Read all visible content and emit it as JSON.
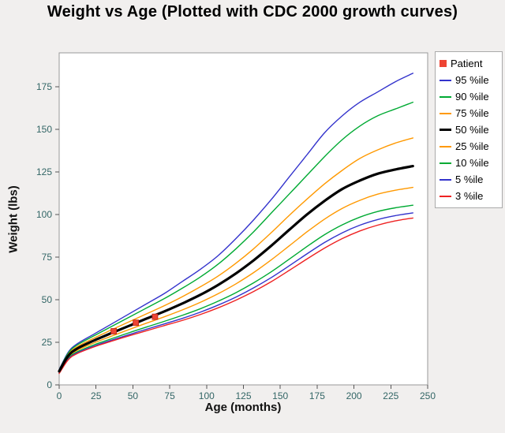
{
  "chart_data": {
    "type": "line",
    "title": "Weight vs Age (Plotted with CDC 2000 growth curves)",
    "xlabel": "Age (months)",
    "ylabel": "Weight (lbs)",
    "xlim": [
      0,
      250
    ],
    "ylim": [
      0,
      195
    ],
    "x_ticks": [
      0,
      25,
      50,
      75,
      100,
      125,
      150,
      175,
      200,
      225,
      250
    ],
    "y_ticks": [
      0,
      25,
      50,
      75,
      100,
      125,
      150,
      175
    ],
    "grid": false,
    "legend_position": "top-right",
    "x": [
      0,
      6,
      12,
      24,
      36,
      48,
      60,
      72,
      84,
      96,
      108,
      120,
      132,
      144,
      156,
      168,
      180,
      192,
      204,
      216,
      228,
      240
    ],
    "series": [
      {
        "name": "95 %ile",
        "color": "#3333cc",
        "line_width": 1.4,
        "values": [
          9,
          19,
          24,
          30,
          36,
          42,
          48,
          54,
          61,
          68,
          76,
          86,
          97,
          109,
          122,
          135,
          148,
          158,
          166,
          172,
          178,
          183
        ]
      },
      {
        "name": "90 %ile",
        "color": "#00aa33",
        "line_width": 1.4,
        "values": [
          8.8,
          18.5,
          23.3,
          29,
          34.5,
          40,
          45.5,
          51,
          57,
          63.5,
          71,
          80,
          90,
          101,
          112,
          123,
          134,
          144,
          152,
          158,
          162,
          166
        ]
      },
      {
        "name": "75 %ile",
        "color": "#ff9900",
        "line_width": 1.4,
        "values": [
          8.4,
          17.7,
          22.3,
          27.6,
          32.5,
          37.3,
          42,
          46.8,
          52,
          57.7,
          64,
          71.5,
          80,
          89.5,
          99.5,
          109,
          118,
          126,
          133,
          138,
          142,
          145
        ]
      },
      {
        "name": "50 %ile",
        "color": "#000000",
        "line_width": 3.2,
        "values": [
          8,
          16.9,
          21.2,
          26.2,
          30.6,
          34.9,
          39.2,
          43.4,
          48,
          53,
          58.8,
          65.5,
          73.2,
          81.8,
          91,
          100,
          108,
          115,
          120,
          124,
          126.5,
          128.5
        ]
      },
      {
        "name": "25 %ile",
        "color": "#ff9900",
        "line_width": 1.4,
        "values": [
          7.6,
          16.1,
          20.2,
          24.8,
          28.8,
          32.7,
          36.5,
          40.2,
          44.2,
          48.6,
          53.6,
          59.4,
          66,
          73.5,
          81.6,
          89.8,
          97.3,
          103.6,
          108.4,
          112,
          114.3,
          116
        ]
      },
      {
        "name": "10 %ile",
        "color": "#00aa33",
        "line_width": 1.4,
        "values": [
          7.2,
          15.4,
          19.3,
          23.6,
          27.3,
          30.8,
          34.2,
          37.5,
          41,
          44.8,
          49.2,
          54.2,
          60,
          66.5,
          73.8,
          81.2,
          88.2,
          94,
          98.5,
          101.8,
          104,
          105.5
        ]
      },
      {
        "name": "5 %ile",
        "color": "#3333cc",
        "line_width": 1.4,
        "values": [
          6.9,
          14.9,
          18.7,
          22.9,
          26.4,
          29.7,
          32.9,
          36,
          39.2,
          42.8,
          46.9,
          51.6,
          57,
          63.1,
          69.9,
          76.9,
          83.6,
          89.3,
          93.8,
          97.1,
          99.4,
          101
        ]
      },
      {
        "name": "3 %ile",
        "color": "#ee2222",
        "line_width": 1.4,
        "values": [
          6.7,
          14.6,
          18.3,
          22.4,
          25.8,
          29,
          32,
          35,
          38,
          41.4,
          45.3,
          49.8,
          54.9,
          60.7,
          67.2,
          73.9,
          80.3,
          85.9,
          90.4,
          93.8,
          96.3,
          98
        ]
      }
    ],
    "patient": {
      "name": "Patient",
      "marker": "square",
      "color": "#ee4433",
      "points": [
        [
          37,
          31.5
        ],
        [
          52,
          36.5
        ],
        [
          65,
          40
        ]
      ]
    }
  },
  "colors": {
    "background": "#f1efee",
    "plot_background": "#ffffff",
    "plot_border": "#999999",
    "axis_tick_color": "#336666",
    "tick_mark_color": "#555555",
    "legend_border": "#aaaaaa",
    "legend_background": "#ffffff",
    "title_color": "#000000"
  }
}
